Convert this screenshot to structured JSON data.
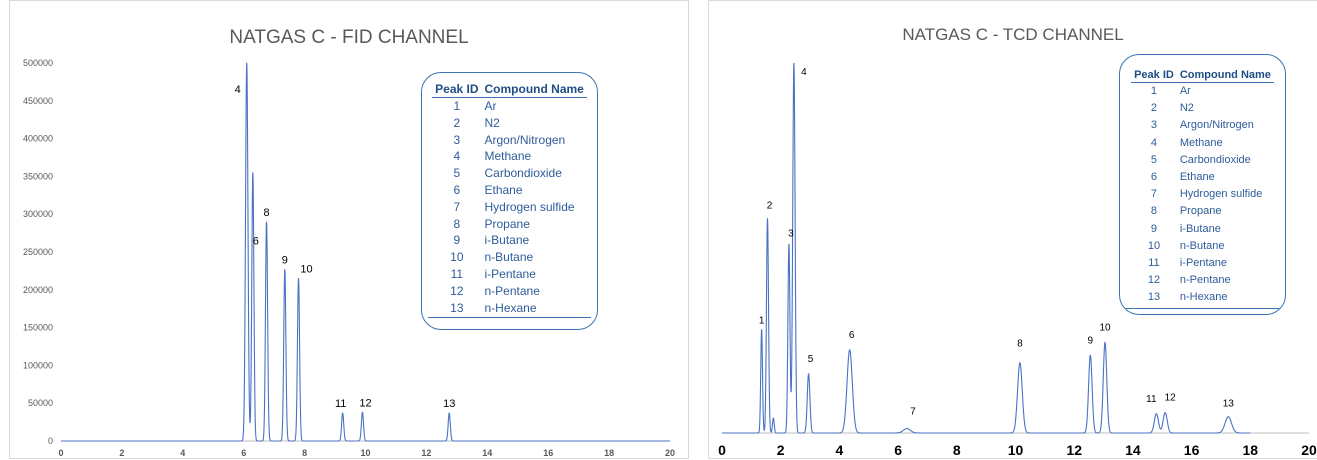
{
  "chart_data": [
    {
      "type": "line",
      "title": "NATGAS C - FID CHANNEL",
      "xlim": [
        0,
        20
      ],
      "ylim": [
        0,
        500000
      ],
      "x_ticks": [
        "0",
        "2",
        "4",
        "6",
        "8",
        "10",
        "12",
        "14",
        "16",
        "18",
        "20"
      ],
      "y_ticks": [
        "0",
        "50000",
        "100000",
        "150000",
        "200000",
        "250000",
        "300000",
        "350000",
        "400000",
        "450000",
        "500000"
      ],
      "grid": false,
      "series_color": "#4a72c4",
      "peaks": [
        {
          "label": "4",
          "x": 6.1,
          "y": 500000,
          "width": 0.04
        },
        {
          "label": "6",
          "x": 6.3,
          "y": 355000,
          "width": 0.035
        },
        {
          "label": "8",
          "x": 6.75,
          "y": 290000,
          "width": 0.035
        },
        {
          "label": "9",
          "x": 7.35,
          "y": 227000,
          "width": 0.035
        },
        {
          "label": "10",
          "x": 7.8,
          "y": 215000,
          "width": 0.035
        },
        {
          "label": "11",
          "x": 9.25,
          "y": 37000,
          "width": 0.035
        },
        {
          "label": "12",
          "x": 9.9,
          "y": 38000,
          "width": 0.035
        },
        {
          "label": "13",
          "x": 12.75,
          "y": 37000,
          "width": 0.035
        }
      ],
      "legend": {
        "headers": [
          "Peak ID",
          "Compound Name"
        ],
        "rows": [
          [
            "1",
            "Ar"
          ],
          [
            "2",
            "N2"
          ],
          [
            "3",
            "Argon/Nitrogen"
          ],
          [
            "4",
            "Methane"
          ],
          [
            "5",
            "Carbondioxide"
          ],
          [
            "6",
            "Ethane"
          ],
          [
            "7",
            "Hydrogen sulfide"
          ],
          [
            "8",
            "Propane"
          ],
          [
            "9",
            "i-Butane"
          ],
          [
            "10",
            "n-Butane"
          ],
          [
            "11",
            "i-Pentane"
          ],
          [
            "12",
            "n-Pentane"
          ],
          [
            "13",
            "n-Hexane"
          ]
        ]
      }
    },
    {
      "type": "line",
      "title": "NATGAS C - TCD CHANNEL",
      "xlim": [
        0,
        20
      ],
      "ylim": [
        0,
        100
      ],
      "x_ticks": [
        "0",
        "2",
        "4",
        "6",
        "8",
        "10",
        "12",
        "14",
        "16",
        "18",
        "20"
      ],
      "grid": false,
      "series_color": "#4a72c4",
      "peaks": [
        {
          "label": "1",
          "x": 1.35,
          "y": 28,
          "width": 0.03
        },
        {
          "label": "2",
          "x": 1.55,
          "y": 58,
          "width": 0.035
        },
        {
          "label": "",
          "x": 1.75,
          "y": 4,
          "width": 0.03
        },
        {
          "label": "3",
          "x": 2.28,
          "y": 51,
          "width": 0.035
        },
        {
          "label": "4",
          "x": 2.45,
          "y": 100,
          "width": 0.04
        },
        {
          "label": "5",
          "x": 2.95,
          "y": 16,
          "width": 0.045
        },
        {
          "label": "6",
          "x": 4.35,
          "y": 22.5,
          "width": 0.09
        },
        {
          "label": "7",
          "x": 6.3,
          "y": 1.2,
          "width": 0.12
        },
        {
          "label": "8",
          "x": 10.15,
          "y": 19,
          "width": 0.08
        },
        {
          "label": "9",
          "x": 12.55,
          "y": 21,
          "width": 0.06
        },
        {
          "label": "10",
          "x": 13.05,
          "y": 24.5,
          "width": 0.06
        },
        {
          "label": "11",
          "x": 14.8,
          "y": 5.2,
          "width": 0.07
        },
        {
          "label": "12",
          "x": 15.1,
          "y": 5.5,
          "width": 0.07
        },
        {
          "label": "13",
          "x": 17.25,
          "y": 4.4,
          "width": 0.11
        }
      ],
      "legend": {
        "headers": [
          "Peak ID",
          "Compound Name"
        ],
        "rows": [
          [
            "1",
            "Ar"
          ],
          [
            "2",
            "N2"
          ],
          [
            "3",
            "Argon/Nitrogen"
          ],
          [
            "4",
            "Methane"
          ],
          [
            "5",
            "Carbondioxide"
          ],
          [
            "6",
            "Ethane"
          ],
          [
            "7",
            "Hydrogen sulfide"
          ],
          [
            "8",
            "Propane"
          ],
          [
            "9",
            "i-Butane"
          ],
          [
            "10",
            "n-Butane"
          ],
          [
            "11",
            "i-Pentane"
          ],
          [
            "12",
            "n-Pentane"
          ],
          [
            "13",
            "n-Hexane"
          ]
        ]
      }
    }
  ]
}
